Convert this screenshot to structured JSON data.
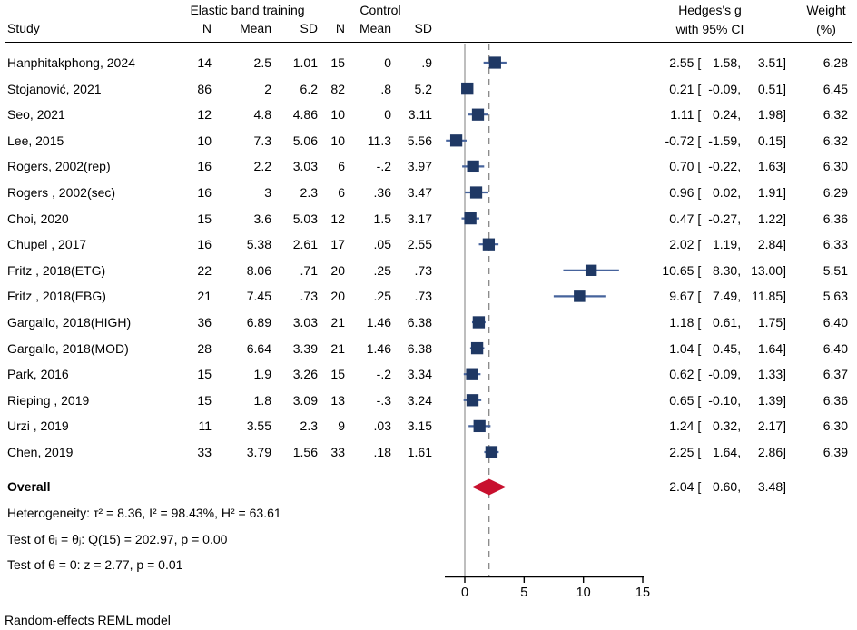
{
  "header": {
    "group1": "Elastic band training",
    "group2": "Control",
    "study": "Study",
    "n": "N",
    "mean": "Mean",
    "sd": "SD",
    "es_line1": "Hedges's g",
    "es_line2": "with 95% CI",
    "weight_line1": "Weight",
    "weight_line2": "(%)"
  },
  "footer": "Random-effects REML model",
  "colors": {
    "square": "#1f3864",
    "ci_line": "#46639c",
    "diamond": "#c8102e",
    "ref_solid": "#a3a3a3",
    "ref_dashed": "#8c8c8c",
    "axis": "#000000"
  },
  "chart_data": {
    "type": "forest",
    "effect_measure": "Hedges's g with 95% CI",
    "model_note": "Random-effects REML model",
    "x_ticks": [
      0,
      5,
      10,
      15
    ],
    "x_range": [
      -1.7,
      15
    ],
    "ref_line": 0,
    "overall_dashed_line": 2.04,
    "studies": [
      {
        "study": "Hanphitakphong, 2024",
        "treat_n": "14",
        "treat_mean": "2.5",
        "treat_sd": "1.01",
        "ctrl_n": "15",
        "ctrl_mean": "0",
        "ctrl_sd": ".9",
        "es": 2.55,
        "ci_low": 1.58,
        "ci_high": 3.51,
        "weight": 6.28
      },
      {
        "study": "Stojanović, 2021",
        "treat_n": "86",
        "treat_mean": "2",
        "treat_sd": "6.2",
        "ctrl_n": "82",
        "ctrl_mean": ".8",
        "ctrl_sd": "5.2",
        "es": 0.21,
        "ci_low": -0.09,
        "ci_high": 0.51,
        "weight": 6.45
      },
      {
        "study": "Seo, 2021",
        "treat_n": "12",
        "treat_mean": "4.8",
        "treat_sd": "4.86",
        "ctrl_n": "10",
        "ctrl_mean": "0",
        "ctrl_sd": "3.11",
        "es": 1.11,
        "ci_low": 0.24,
        "ci_high": 1.98,
        "weight": 6.32
      },
      {
        "study": "Lee, 2015",
        "treat_n": "10",
        "treat_mean": "7.3",
        "treat_sd": "5.06",
        "ctrl_n": "10",
        "ctrl_mean": "11.3",
        "ctrl_sd": "5.56",
        "es": -0.72,
        "ci_low": -1.59,
        "ci_high": 0.15,
        "weight": 6.32
      },
      {
        "study": "Rogers, 2002(rep)",
        "treat_n": "16",
        "treat_mean": "2.2",
        "treat_sd": "3.03",
        "ctrl_n": "6",
        "ctrl_mean": "-.2",
        "ctrl_sd": "3.97",
        "es": 0.7,
        "ci_low": -0.22,
        "ci_high": 1.63,
        "weight": 6.3
      },
      {
        "study": "Rogers , 2002(sec)",
        "treat_n": "16",
        "treat_mean": "3",
        "treat_sd": "2.3",
        "ctrl_n": "6",
        "ctrl_mean": ".36",
        "ctrl_sd": "3.47",
        "es": 0.96,
        "ci_low": 0.02,
        "ci_high": 1.91,
        "weight": 6.29
      },
      {
        "study": "Choi, 2020",
        "treat_n": "15",
        "treat_mean": "3.6",
        "treat_sd": "5.03",
        "ctrl_n": "12",
        "ctrl_mean": "1.5",
        "ctrl_sd": "3.17",
        "es": 0.47,
        "ci_low": -0.27,
        "ci_high": 1.22,
        "weight": 6.36
      },
      {
        "study": "Chupel , 2017",
        "treat_n": "16",
        "treat_mean": "5.38",
        "treat_sd": "2.61",
        "ctrl_n": "17",
        "ctrl_mean": ".05",
        "ctrl_sd": "2.55",
        "es": 2.02,
        "ci_low": 1.19,
        "ci_high": 2.84,
        "weight": 6.33
      },
      {
        "study": "Fritz , 2018(ETG)",
        "treat_n": "22",
        "treat_mean": "8.06",
        "treat_sd": ".71",
        "ctrl_n": "20",
        "ctrl_mean": ".25",
        "ctrl_sd": ".73",
        "es": 10.65,
        "ci_low": 8.3,
        "ci_high": 13.0,
        "weight": 5.51
      },
      {
        "study": "Fritz , 2018(EBG)",
        "treat_n": "21",
        "treat_mean": "7.45",
        "treat_sd": ".73",
        "ctrl_n": "20",
        "ctrl_mean": ".25",
        "ctrl_sd": ".73",
        "es": 9.67,
        "ci_low": 7.49,
        "ci_high": 11.85,
        "weight": 5.63
      },
      {
        "study": "Gargallo, 2018(HIGH)",
        "treat_n": "36",
        "treat_mean": "6.89",
        "treat_sd": "3.03",
        "ctrl_n": "21",
        "ctrl_mean": "1.46",
        "ctrl_sd": "6.38",
        "es": 1.18,
        "ci_low": 0.61,
        "ci_high": 1.75,
        "weight": 6.4
      },
      {
        "study": "Gargallo, 2018(MOD)",
        "treat_n": "28",
        "treat_mean": "6.64",
        "treat_sd": "3.39",
        "ctrl_n": "21",
        "ctrl_mean": "1.46",
        "ctrl_sd": "6.38",
        "es": 1.04,
        "ci_low": 0.45,
        "ci_high": 1.64,
        "weight": 6.4
      },
      {
        "study": "Park, 2016",
        "treat_n": "15",
        "treat_mean": "1.9",
        "treat_sd": "3.26",
        "ctrl_n": "15",
        "ctrl_mean": "-.2",
        "ctrl_sd": "3.34",
        "es": 0.62,
        "ci_low": -0.09,
        "ci_high": 1.33,
        "weight": 6.37
      },
      {
        "study": "Rieping , 2019",
        "treat_n": "15",
        "treat_mean": "1.8",
        "treat_sd": "3.09",
        "ctrl_n": "13",
        "ctrl_mean": "-.3",
        "ctrl_sd": "3.24",
        "es": 0.65,
        "ci_low": -0.1,
        "ci_high": 1.39,
        "weight": 6.36
      },
      {
        "study": "Urzi , 2019",
        "treat_n": "11",
        "treat_mean": "3.55",
        "treat_sd": "2.3",
        "ctrl_n": "9",
        "ctrl_mean": ".03",
        "ctrl_sd": "3.15",
        "es": 1.24,
        "ci_low": 0.32,
        "ci_high": 2.17,
        "weight": 6.3
      },
      {
        "study": "Chen, 2019",
        "treat_n": "33",
        "treat_mean": "3.79",
        "treat_sd": "1.56",
        "ctrl_n": "33",
        "ctrl_mean": ".18",
        "ctrl_sd": "1.61",
        "es": 2.25,
        "ci_low": 1.64,
        "ci_high": 2.86,
        "weight": 6.39
      }
    ],
    "overall": {
      "label": "Overall",
      "es": 2.04,
      "ci_low": 0.6,
      "ci_high": 3.48
    },
    "heterogeneity": "Heterogeneity: τ² = 8.36, I² = 98.43%, H² = 63.61",
    "test_within": "Test of θᵢ = θⱼ: Q(15) = 202.97, p = 0.00",
    "test_zero": "Test of θ = 0: z = 2.77, p = 0.01"
  }
}
